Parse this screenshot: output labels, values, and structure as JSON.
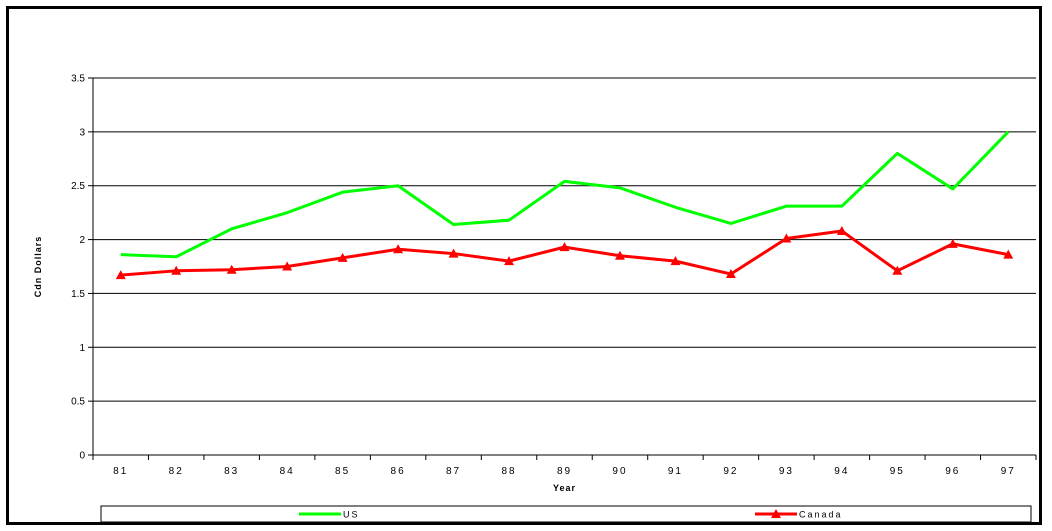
{
  "chart_data": {
    "type": "line",
    "title": "",
    "xlabel": "Year",
    "ylabel": "Cdn Dollars",
    "categories": [
      "81",
      "82",
      "83",
      "84",
      "85",
      "86",
      "87",
      "88",
      "89",
      "90",
      "91",
      "92",
      "93",
      "94",
      "95",
      "96",
      "97"
    ],
    "yticks": [
      "0",
      "0.5",
      "1",
      "1.5",
      "2",
      "2.5",
      "3",
      "3.5"
    ],
    "ylim": [
      0,
      3.5
    ],
    "grid": true,
    "legend_position": "bottom",
    "series": [
      {
        "name": "US",
        "color": "#00ff00",
        "marker": "none",
        "values": [
          1.86,
          1.84,
          2.1,
          2.25,
          2.44,
          2.5,
          2.14,
          2.18,
          2.54,
          2.48,
          2.3,
          2.15,
          2.31,
          2.31,
          2.8,
          2.47,
          3.0
        ]
      },
      {
        "name": "Canada",
        "color": "#ff0000",
        "marker": "triangle",
        "values": [
          1.67,
          1.71,
          1.72,
          1.75,
          1.83,
          1.91,
          1.87,
          1.8,
          1.93,
          1.85,
          1.8,
          1.68,
          2.01,
          2.08,
          1.71,
          1.96,
          1.86
        ]
      }
    ]
  }
}
